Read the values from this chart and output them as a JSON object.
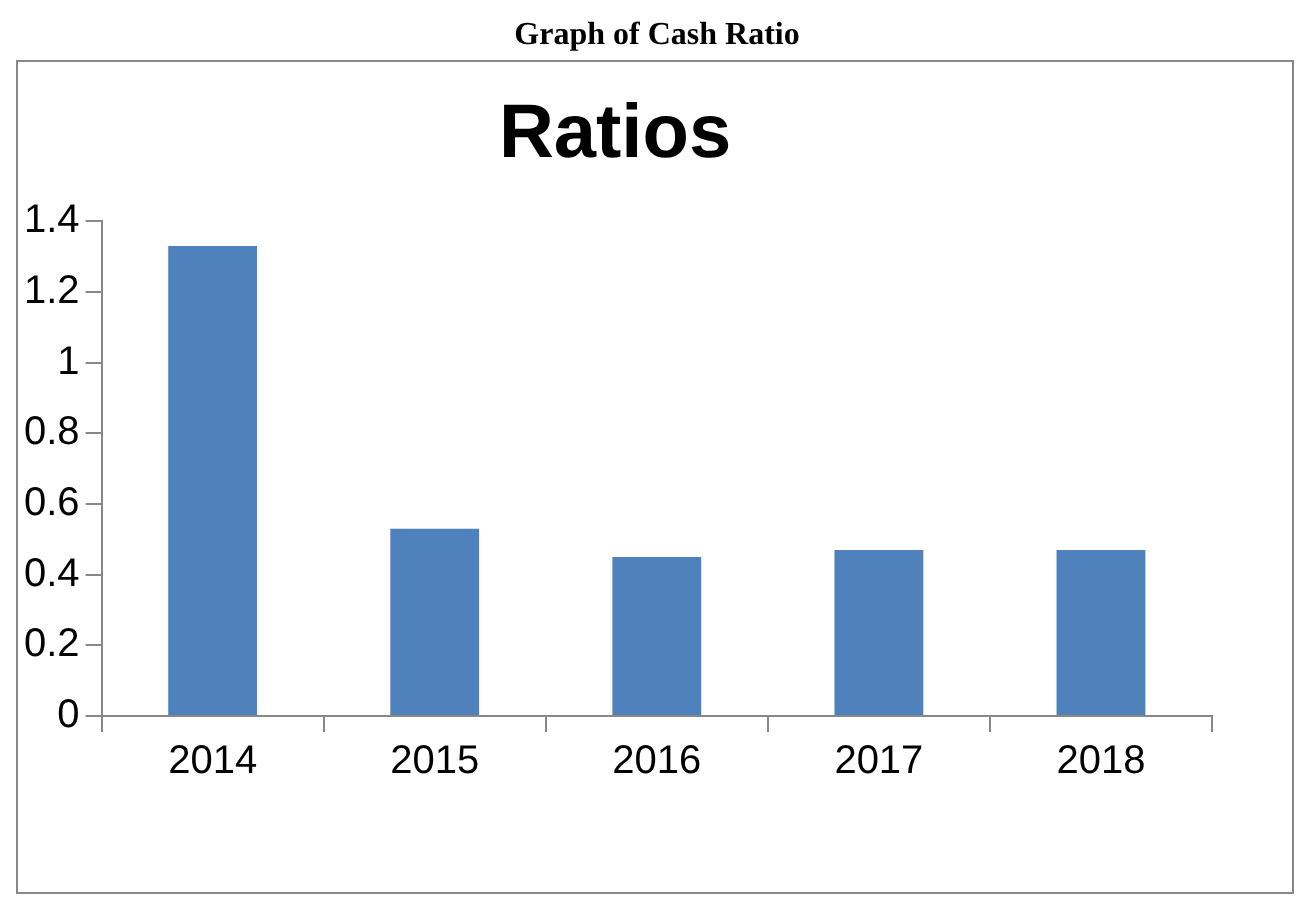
{
  "chart_data": {
    "type": "bar",
    "title": "Ratios",
    "annotations": [
      "Graph of Cash Ratio"
    ],
    "categories": [
      "2014",
      "2015",
      "2016",
      "2017",
      "2018"
    ],
    "values": [
      1.33,
      0.53,
      0.45,
      0.47,
      0.47
    ],
    "color": "#4f81bd",
    "ylim": [
      0,
      1.4
    ],
    "yticks": [
      0,
      0.2,
      0.4,
      0.6,
      0.8,
      1,
      1.2,
      1.4
    ],
    "grid": false,
    "legend": false
  }
}
